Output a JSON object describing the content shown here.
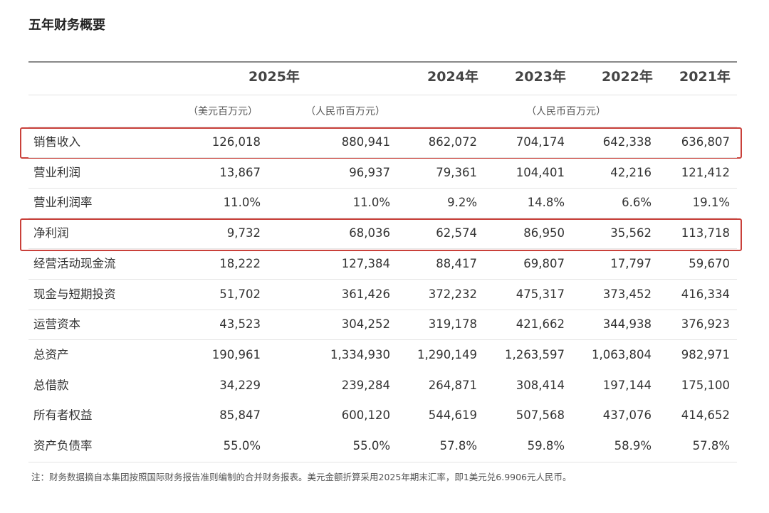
{
  "title": "五年财务概要",
  "header": {
    "years": [
      "2025年",
      "2024年",
      "2023年",
      "2022年",
      "2021年"
    ]
  },
  "units": [
    "（美元百万元）",
    "（人民币百万元）",
    "（人民币百万元）"
  ],
  "table": {
    "rows": [
      [
        "销售收入",
        "126,018",
        "880,941",
        "862,072",
        "704,174",
        "642,338",
        "636,807"
      ],
      [
        "营业利润",
        "13,867",
        "96,937",
        "79,361",
        "104,401",
        "42,216",
        "121,412"
      ],
      [
        "营业利润率",
        "11.0%",
        "11.0%",
        "9.2%",
        "14.8%",
        "6.6%",
        "19.1%"
      ],
      [
        "净利润",
        "9,732",
        "68,036",
        "62,574",
        "86,950",
        "35,562",
        "113,718"
      ],
      [
        "经营活动现金流",
        "18,222",
        "127,384",
        "88,417",
        "69,807",
        "17,797",
        "59,670"
      ],
      [
        "现金与短期投资",
        "51,702",
        "361,426",
        "372,232",
        "475,317",
        "373,452",
        "416,334"
      ],
      [
        "运营资本",
        "43,523",
        "304,252",
        "319,178",
        "421,662",
        "344,938",
        "376,923"
      ],
      [
        "总资产",
        "190,961",
        "1,334,930",
        "1,290,149",
        "1,263,597",
        "1,063,804",
        "982,971"
      ],
      [
        "总借款",
        "34,229",
        "239,284",
        "264,871",
        "308,414",
        "197,144",
        "175,100"
      ],
      [
        "所有者权益",
        "85,847",
        "600,120",
        "544,619",
        "507,568",
        "437,076",
        "414,652"
      ],
      [
        "资产负债率",
        "55.0%",
        "55.0%",
        "57.8%",
        "59.8%",
        "58.9%",
        "57.8%"
      ]
    ]
  },
  "note": "注：财务数据摘自本集团按照国际财务报告准则编制的合并财务报表。美元金额折算采用2025年期末汇率，即1美元兑6.9906元人民币。"
}
